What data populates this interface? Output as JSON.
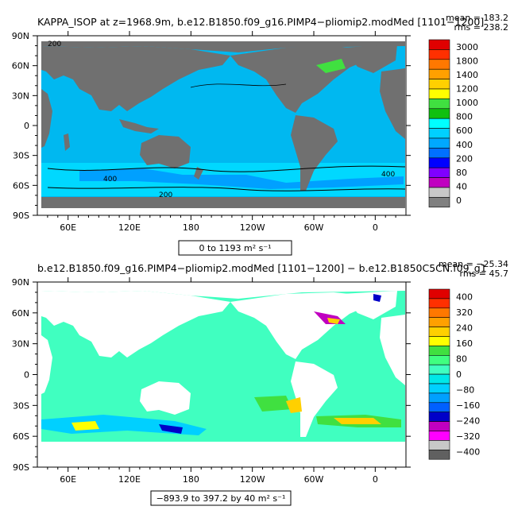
{
  "chart_data": [
    {
      "type": "heatmap",
      "title": "KAPPA_ISOP at z=1968.9m, b.e12.B1850.f09_g16.PIMP4−pliomip2.modMed [1101−1200]",
      "stats": {
        "mean": "mean = 183.2",
        "rms": "rms = 238.2"
      },
      "range_label": "0 to 1193 m² s⁻¹",
      "x_ticks": [
        "60E",
        "120E",
        "180",
        "120W",
        "60W",
        "0"
      ],
      "y_ticks": [
        "90N",
        "60N",
        "30N",
        "0",
        "30S",
        "60S",
        "90S"
      ],
      "legend": {
        "labels": [
          "3000",
          "1800",
          "1400",
          "1200",
          "1000",
          "800",
          "600",
          "400",
          "200",
          "80",
          "40",
          "0"
        ],
        "colors": [
          "#e00000",
          "#ff3000",
          "#ff7800",
          "#ffa000",
          "#ffd000",
          "#ffff00",
          "#40e040",
          "#10c010",
          "#00ffff",
          "#00d0ff",
          "#00a8ff",
          "#0070ff",
          "#0000ff",
          "#8000ff",
          "#c000c0",
          "#c8c8c8",
          "#808080"
        ]
      },
      "contour_labels": [
        "200",
        "400"
      ],
      "grid": false
    },
    {
      "type": "heatmap",
      "title": "b.e12.B1850.f09_g16.PIMP4−pliomip2.modMed [1101−1200] − b.e12.B1850C5CN.f09_g1",
      "stats": {
        "mean": "mean = −25.34",
        "rms": "rms = 45.7"
      },
      "range_label": "−893.9 to 397.2 by 40 m² s⁻¹",
      "x_ticks": [
        "60E",
        "120E",
        "180",
        "120W",
        "60W",
        "0"
      ],
      "y_ticks": [
        "90N",
        "60N",
        "30N",
        "0",
        "30S",
        "60S",
        "90S"
      ],
      "legend": {
        "labels": [
          "400",
          "320",
          "240",
          "160",
          "80",
          "0",
          "−80",
          "−160",
          "−240",
          "−320",
          "−400"
        ],
        "colors": [
          "#e00000",
          "#ff3000",
          "#ff7800",
          "#ffa000",
          "#ffd000",
          "#ffff00",
          "#40e040",
          "#40ff80",
          "#40ffc0",
          "#00e8e8",
          "#00d0ff",
          "#00a0ff",
          "#0060ff",
          "#0000c8",
          "#c000c0",
          "#ff00ff",
          "#c8c8c8",
          "#606060"
        ]
      },
      "grid": false
    }
  ]
}
